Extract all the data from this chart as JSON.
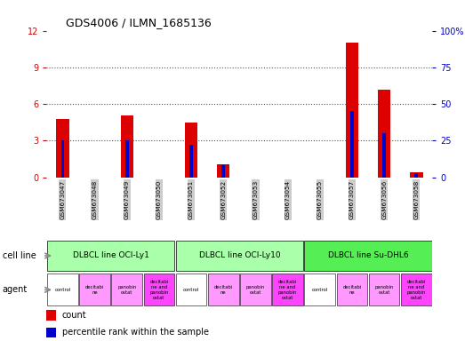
{
  "title": "GDS4006 / ILMN_1685136",
  "samples": [
    "GSM673047",
    "GSM673048",
    "GSM673049",
    "GSM673050",
    "GSM673051",
    "GSM673052",
    "GSM673053",
    "GSM673054",
    "GSM673055",
    "GSM673057",
    "GSM673056",
    "GSM673058"
  ],
  "count_values": [
    4.8,
    0,
    5.1,
    0,
    4.5,
    1.1,
    0,
    0,
    0,
    11.0,
    7.2,
    0.4
  ],
  "percentile_values": [
    25,
    0,
    25,
    0,
    22,
    8,
    0,
    0,
    0,
    45,
    30,
    3
  ],
  "ylim_left": [
    0,
    12
  ],
  "ylim_right": [
    0,
    100
  ],
  "yticks_left": [
    0,
    3,
    6,
    9,
    12
  ],
  "yticks_right": [
    0,
    25,
    50,
    75,
    100
  ],
  "ytick_labels_right": [
    "0",
    "25",
    "50",
    "75",
    "100%"
  ],
  "bar_color": "#dd0000",
  "percentile_color": "#0000cc",
  "cell_line_groups": [
    {
      "label": "DLBCL line OCI-Ly1",
      "start": 0,
      "end": 4,
      "color": "#aaffaa"
    },
    {
      "label": "DLBCL line OCI-Ly10",
      "start": 4,
      "end": 8,
      "color": "#aaffaa"
    },
    {
      "label": "DLBCL line Su-DHL6",
      "start": 8,
      "end": 12,
      "color": "#55ee55"
    }
  ],
  "agent_labels": [
    "control",
    "decitabi\nne",
    "panobin\nostat",
    "decitabi\nne and\npanobin\nostat",
    "control",
    "decitabi\nne",
    "panobin\nostat",
    "decitabi\nne and\npanobin\nostat",
    "control",
    "decitabi\nne",
    "panobin\nostat",
    "decitabi\nne and\npanobin\nostat"
  ],
  "agent_colors": [
    "#ffffff",
    "#ff99ff",
    "#ff99ff",
    "#ff44ff",
    "#ffffff",
    "#ff99ff",
    "#ff99ff",
    "#ff44ff",
    "#ffffff",
    "#ff99ff",
    "#ff99ff",
    "#ff44ff"
  ],
  "tick_bg_color": "#cccccc",
  "grid_color": "#555555",
  "left_label_color": "#cc0000",
  "right_label_color": "#0000cc",
  "fig_bg": "#ffffff",
  "bar_width": 0.4,
  "pct_bar_width": 0.1
}
